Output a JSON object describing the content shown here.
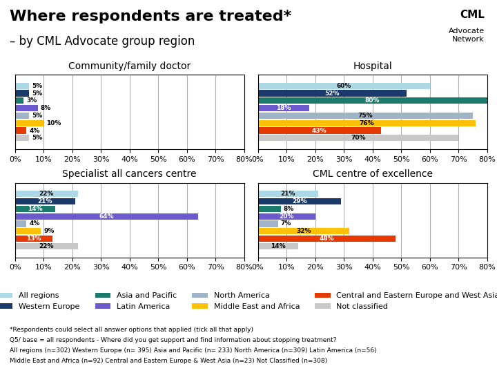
{
  "title": "Where respondents are treated*",
  "subtitle": "– by CML Advocate group region",
  "badge": [
    "CML",
    "Advocate\nNetwork"
  ],
  "annotations": [
    "*Respondents could select all answer options that applied (tick all that apply)",
    "Q5/ base = all respondents - Where did you get support and find information about stopping treatment?",
    "All regions (n=302) Western Europe (n= 395) Asia and Pacific (n= 233) North America (n=309) Latin America (n=56)",
    "Middle East and Africa (n=92) Central and Eastern Europe & West Asia (n=23) Not Classified (n=308)"
  ],
  "chart_data": [
    {
      "type": "bar",
      "orientation": "horizontal",
      "title": "Community/family doctor",
      "categories": [
        null
      ],
      "tick_labels": "x",
      "grid": true,
      "data_labels": true,
      "legend": "lower center",
      "xlim": [
        0,
        80
      ],
      "xticks": [
        {
          "value": 0,
          "label": "0%"
        },
        {
          "value": 10,
          "label": "10%"
        },
        {
          "value": 20,
          "label": "20%"
        },
        {
          "value": 30,
          "label": "30%"
        },
        {
          "value": 40,
          "label": "40%"
        },
        {
          "value": 50,
          "label": "50%"
        },
        {
          "value": 60,
          "label": "60%"
        },
        {
          "value": 70,
          "label": "70%"
        },
        {
          "value": 80,
          "label": "80%"
        }
      ],
      "series": [
        {
          "name": "All regions",
          "color": "#add8e6",
          "values": [
            5
          ],
          "value_labels": [
            "5%"
          ]
        },
        {
          "name": "Western Europe",
          "color": "#1a3a6b",
          "values": [
            5
          ],
          "value_labels": [
            "5%"
          ]
        },
        {
          "name": "Asia and Pacific",
          "color": "#1a7a6b",
          "values": [
            3
          ],
          "value_labels": [
            "3%"
          ]
        },
        {
          "name": "Latin America",
          "color": "#6a5acd",
          "values": [
            8
          ],
          "value_labels": [
            "8%"
          ]
        },
        {
          "name": "North America",
          "color": "#a0b4c8",
          "values": [
            5
          ],
          "value_labels": [
            "5%"
          ]
        },
        {
          "name": "Middle East and Africa",
          "color": "#ffc107",
          "values": [
            10
          ],
          "value_labels": [
            "10%"
          ]
        },
        {
          "name": "Central and Eastern Europe and West Asia",
          "color": "#e63900",
          "values": [
            4
          ],
          "value_labels": [
            "4%"
          ]
        },
        {
          "name": "Not classified",
          "color": "#c8c8c8",
          "values": [
            5
          ],
          "value_labels": [
            "5%"
          ]
        }
      ]
    },
    {
      "type": "bar",
      "orientation": "horizontal",
      "title": "Hospital",
      "categories": [
        null
      ],
      "tick_labels": "x",
      "grid": true,
      "data_labels": true,
      "xlim": [
        0,
        80
      ],
      "xticks": [
        {
          "value": 0,
          "label": "0%"
        },
        {
          "value": 10,
          "label": "10%"
        },
        {
          "value": 20,
          "label": "20%"
        },
        {
          "value": 30,
          "label": "30%"
        },
        {
          "value": 40,
          "label": "40%"
        },
        {
          "value": 50,
          "label": "50%"
        },
        {
          "value": 60,
          "label": "60%"
        },
        {
          "value": 70,
          "label": "70%"
        },
        {
          "value": 80,
          "label": "80%"
        }
      ],
      "series": [
        {
          "name": "All regions",
          "color": "#add8e6",
          "values": [
            60
          ],
          "value_labels": [
            "60%"
          ]
        },
        {
          "name": "Western Europe",
          "color": "#1a3a6b",
          "values": [
            52
          ],
          "value_labels": [
            "52%"
          ]
        },
        {
          "name": "Asia and Pacific",
          "color": "#1a7a6b",
          "values": [
            80
          ],
          "value_labels": [
            "80%"
          ]
        },
        {
          "name": "Latin America",
          "color": "#6a5acd",
          "values": [
            18
          ],
          "value_labels": [
            "18%"
          ]
        },
        {
          "name": "North America",
          "color": "#a0b4c8",
          "values": [
            75
          ],
          "value_labels": [
            "75%"
          ]
        },
        {
          "name": "Middle East and Africa",
          "color": "#ffc107",
          "values": [
            76
          ],
          "value_labels": [
            "76%"
          ]
        },
        {
          "name": "Central and Eastern Europe and West Asia",
          "color": "#e63900",
          "values": [
            43
          ],
          "value_labels": [
            "43%"
          ]
        },
        {
          "name": "Not classified",
          "color": "#c8c8c8",
          "values": [
            70
          ],
          "value_labels": [
            "70%"
          ]
        }
      ]
    },
    {
      "type": "bar",
      "orientation": "horizontal",
      "title": "Specialist all cancers centre",
      "categories": [
        null
      ],
      "tick_labels": "x",
      "grid": true,
      "data_labels": true,
      "xlim": [
        0,
        80
      ],
      "xticks": [
        {
          "value": 0,
          "label": "0%"
        },
        {
          "value": 10,
          "label": "10%"
        },
        {
          "value": 20,
          "label": "20%"
        },
        {
          "value": 30,
          "label": "30%"
        },
        {
          "value": 40,
          "label": "40%"
        },
        {
          "value": 50,
          "label": "50%"
        },
        {
          "value": 60,
          "label": "60%"
        },
        {
          "value": 70,
          "label": "70%"
        },
        {
          "value": 80,
          "label": "80%"
        }
      ],
      "series": [
        {
          "name": "All regions",
          "color": "#add8e6",
          "values": [
            22
          ],
          "value_labels": [
            "22%"
          ]
        },
        {
          "name": "Western Europe",
          "color": "#1a3a6b",
          "values": [
            21
          ],
          "value_labels": [
            "21%"
          ]
        },
        {
          "name": "Asia and Pacific",
          "color": "#1a7a6b",
          "values": [
            14
          ],
          "value_labels": [
            "14%"
          ]
        },
        {
          "name": "Latin America",
          "color": "#6a5acd",
          "values": [
            64
          ],
          "value_labels": [
            "64%"
          ]
        },
        {
          "name": "North America",
          "color": "#a0b4c8",
          "values": [
            4
          ],
          "value_labels": [
            "4%"
          ]
        },
        {
          "name": "Middle East and Africa",
          "color": "#ffc107",
          "values": [
            9
          ],
          "value_labels": [
            "9%"
          ]
        },
        {
          "name": "Central and Eastern Europe and West Asia",
          "color": "#e63900",
          "values": [
            13
          ],
          "value_labels": [
            "13%"
          ]
        },
        {
          "name": "Not classified",
          "color": "#c8c8c8",
          "values": [
            22
          ],
          "value_labels": [
            "22%"
          ]
        }
      ]
    },
    {
      "type": "bar",
      "orientation": "horizontal",
      "title": "CML centre of excellence",
      "categories": [
        null
      ],
      "tick_labels": "x",
      "grid": true,
      "data_labels": true,
      "xlim": [
        0,
        80
      ],
      "xticks": [
        {
          "value": 0,
          "label": "0%"
        },
        {
          "value": 10,
          "label": "10%"
        },
        {
          "value": 20,
          "label": "20%"
        },
        {
          "value": 30,
          "label": "30%"
        },
        {
          "value": 40,
          "label": "40%"
        },
        {
          "value": 50,
          "label": "50%"
        },
        {
          "value": 60,
          "label": "60%"
        },
        {
          "value": 70,
          "label": "70%"
        },
        {
          "value": 80,
          "label": "80%"
        }
      ],
      "series": [
        {
          "name": "All regions",
          "color": "#add8e6",
          "values": [
            21
          ],
          "value_labels": [
            "21%"
          ]
        },
        {
          "name": "Western Europe",
          "color": "#1a3a6b",
          "values": [
            29
          ],
          "value_labels": [
            "29%"
          ]
        },
        {
          "name": "Asia and Pacific",
          "color": "#1a7a6b",
          "values": [
            8
          ],
          "value_labels": [
            "8%"
          ]
        },
        {
          "name": "Latin America",
          "color": "#6a5acd",
          "values": [
            20
          ],
          "value_labels": [
            "20%"
          ]
        },
        {
          "name": "North America",
          "color": "#a0b4c8",
          "values": [
            7
          ],
          "value_labels": [
            "7%"
          ]
        },
        {
          "name": "Middle East and Africa",
          "color": "#ffc107",
          "values": [
            32
          ],
          "value_labels": [
            "32%"
          ]
        },
        {
          "name": "Central and Eastern Europe and West Asia",
          "color": "#e63900",
          "values": [
            48
          ],
          "value_labels": [
            "48%"
          ]
        },
        {
          "name": "Not classified",
          "color": "#c8c8c8",
          "values": [
            14
          ],
          "value_labels": [
            "14%"
          ]
        }
      ]
    }
  ]
}
